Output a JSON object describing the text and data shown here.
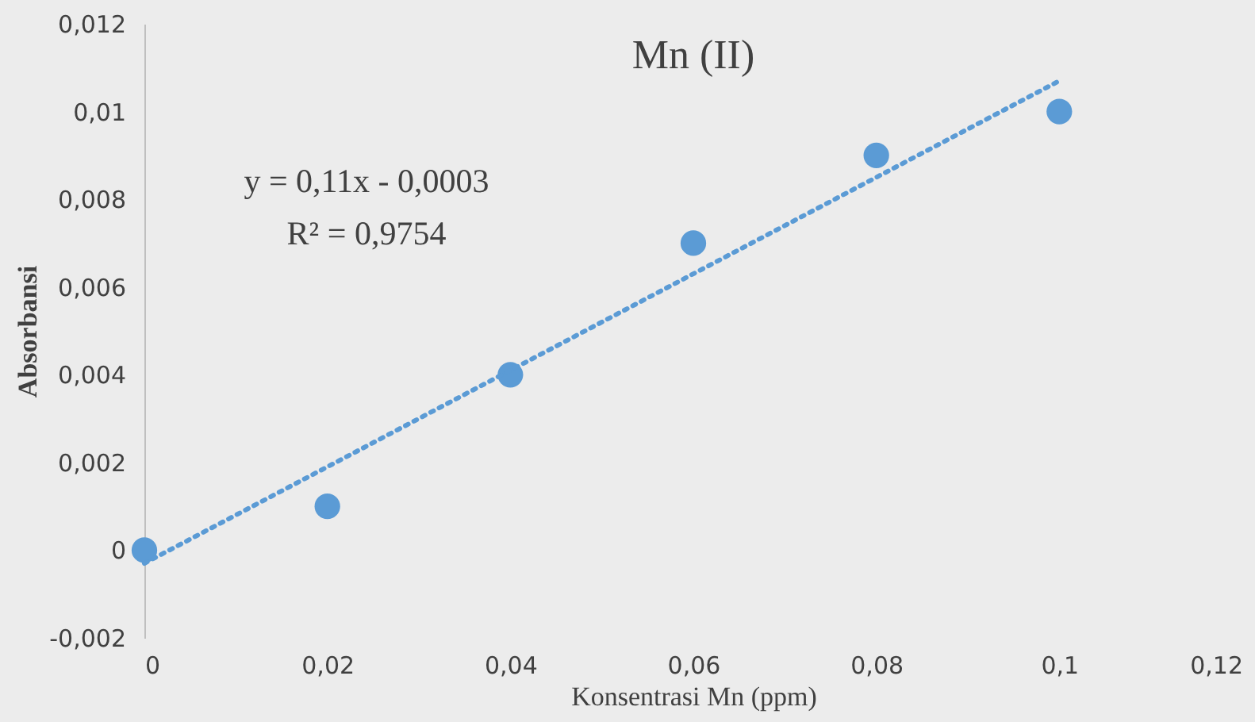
{
  "chart_data": {
    "type": "scatter",
    "title": "Mn (II)",
    "xlabel": "Konsentrasi Mn (ppm)",
    "ylabel": "Absorbansi",
    "x": [
      0,
      0.02,
      0.04,
      0.06,
      0.08,
      0.1
    ],
    "series": [
      {
        "color": "#5b9bd5",
        "marker": "circle",
        "values": [
          0,
          0.001,
          0.004,
          0.007,
          0.009,
          0.01
        ]
      },
      {
        "type": "line",
        "color": "#5b9bd5",
        "line_style": "dotted",
        "marker": "none",
        "x": [
          0,
          0.1
        ],
        "values": [
          -0.0003,
          0.0107
        ]
      }
    ],
    "xlim": [
      0,
      0.12
    ],
    "xticks": [
      0,
      {
        "value": 0.02,
        "label": "0,02"
      },
      {
        "value": 0.04,
        "label": "0,04"
      },
      {
        "value": 0.06,
        "label": "0,06"
      },
      {
        "value": 0.08,
        "label": "0,08"
      },
      {
        "value": 0.1,
        "label": "0,1"
      },
      {
        "value": 0.12,
        "label": "0,12"
      }
    ],
    "ylim": [
      -0.002,
      0.012
    ],
    "yticks": [
      {
        "value": -0.002,
        "label": "-0,002"
      },
      0,
      {
        "value": 0.002,
        "label": "0,002"
      },
      {
        "value": 0.004,
        "label": "0,004"
      },
      {
        "value": 0.006,
        "label": "0,006"
      },
      {
        "value": 0.008,
        "label": "0,008"
      },
      {
        "value": 0.01,
        "label": "0,01"
      },
      {
        "value": 0.012,
        "label": "0,012"
      }
    ],
    "annotations": [
      "y = 0,11x - 0,0003",
      "R² = 0,9754"
    ],
    "grid": false
  }
}
